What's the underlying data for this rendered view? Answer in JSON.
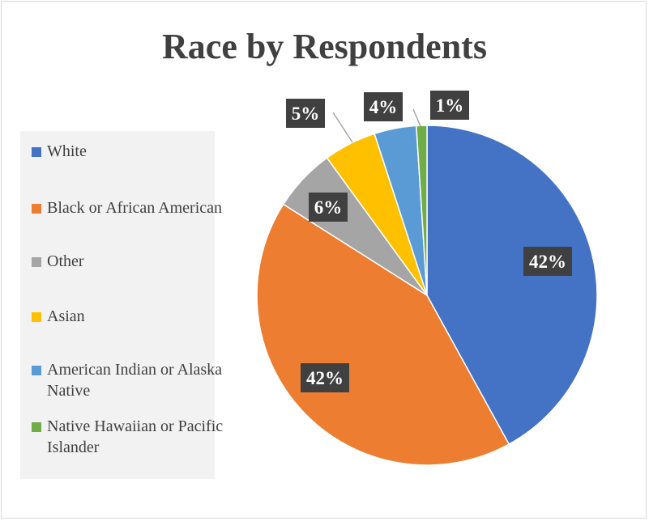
{
  "chart_data": {
    "type": "pie",
    "title": "Race by Respondents",
    "categories": [
      "White",
      "Black or African American",
      "Other",
      "Asian",
      "American Indian or Alaska Native",
      "Native Hawaiian or Pacific Islander"
    ],
    "values": [
      42,
      42,
      6,
      5,
      4,
      1
    ],
    "data_labels": [
      "42%",
      "42%",
      "6%",
      "5%",
      "4%",
      "1%"
    ],
    "colors": [
      "#4472c4",
      "#ed7d31",
      "#a5a5a5",
      "#ffc000",
      "#5b9bd5",
      "#70ad47"
    ],
    "legend_position": "left"
  }
}
